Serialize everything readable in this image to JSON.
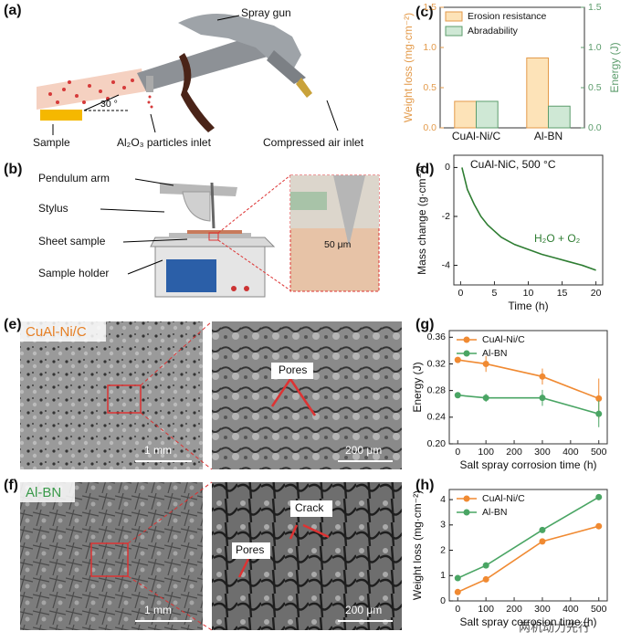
{
  "panel_labels": [
    "(a)",
    "(b)",
    "(c)",
    "(d)",
    "(e)",
    "(f)",
    "(g)",
    "(h)"
  ],
  "spray": {
    "gun": "Spray gun",
    "sample": "Sample",
    "particles": "Al₂O₃ particles inlet",
    "air": "Compressed air inlet",
    "angle": "30 °"
  },
  "pendulum": {
    "arm": "Pendulum arm",
    "stylus": "Stylus",
    "sheet": "Sheet sample",
    "holder": "Sample holder",
    "scale": "50 μm"
  },
  "sem_e": {
    "label": "CuAl-Ni/C",
    "scale_left": "1 mm",
    "pores": "Pores",
    "scale_right": "200 μm"
  },
  "sem_f": {
    "label": "Al-BN",
    "scale_left": "1 mm",
    "pores": "Pores",
    "crack": "Crack",
    "scale_right": "200 μm"
  },
  "watermark": "两机动力先行",
  "chart_data": [
    {
      "type": "bar",
      "categories": [
        "CuAl-Ni/C",
        "Al-BN"
      ],
      "series": [
        {
          "name": "Erosion resistance",
          "color": "#fde3b8",
          "edgecolor": "#e39a4a",
          "values": [
            0.33,
            0.87
          ]
        },
        {
          "name": "Abradability",
          "color": "#cfe8d5",
          "edgecolor": "#5c9c6c",
          "values": [
            0.33,
            0.27
          ],
          "axis": "y2"
        }
      ],
      "ylabel": "Weight loss (mg·cm⁻²)",
      "y2label": "Energy (J)",
      "ylim": [
        0,
        1.5
      ],
      "yticks": [
        {
          "value": 0,
          "label": "0.0"
        },
        0.5,
        {
          "value": 1,
          "label": "1.0"
        },
        1.5
      ],
      "y2lim": [
        0,
        1.5
      ],
      "y2ticks": [
        {
          "value": 0,
          "label": "0.0"
        },
        0.5,
        {
          "value": 1,
          "label": "1.0"
        },
        1.5
      ]
    },
    {
      "type": "line",
      "annotations": [
        "CuAl-NiC, 500 °C",
        "H₂O + O₂"
      ],
      "x": [
        0.2,
        1,
        2,
        3,
        4,
        5,
        6,
        7,
        8,
        10,
        12,
        14,
        16,
        18,
        20
      ],
      "series": [
        {
          "color": "#2e7d32",
          "values": [
            0,
            -0.9,
            -1.5,
            -2.0,
            -2.35,
            -2.6,
            -2.85,
            -3.0,
            -3.15,
            -3.35,
            -3.55,
            -3.7,
            -3.85,
            -4.0,
            -4.2
          ]
        }
      ],
      "xlabel": "Time (h)",
      "ylabel": "Mass change (g·cm⁻²)",
      "xlim": [
        -1,
        21
      ],
      "xticks": [
        0,
        5,
        10,
        15,
        20
      ],
      "ylim": [
        -4.8,
        0.5
      ],
      "yticks": [
        0,
        -2,
        -4
      ]
    },
    {
      "type": "line",
      "x": [
        0,
        100,
        300,
        500
      ],
      "series": [
        {
          "name": "CuAl-Ni/C",
          "color": "#f08a32",
          "values": [
            0.326,
            0.32,
            0.301,
            0.268
          ],
          "errors": [
            0.004,
            0.012,
            0.012,
            0.03
          ]
        },
        {
          "name": "Al-BN",
          "color": "#4aa564",
          "values": [
            0.273,
            0.269,
            0.269,
            0.245
          ],
          "errors": [
            0.003,
            0.006,
            0.012,
            0.02
          ]
        }
      ],
      "xlabel": "Salt spray corrosion time (h)",
      "ylabel": "Energy (J)",
      "xlim": [
        -30,
        530
      ],
      "xticks": [
        0,
        100,
        200,
        300,
        400,
        500
      ],
      "ylim": [
        0.2,
        0.37
      ],
      "yticks": [
        {
          "value": 0.2,
          "label": "0.20"
        },
        0.24,
        {
          "value": 0.28,
          "label": "0.28"
        },
        0.32,
        0.36
      ]
    },
    {
      "type": "line",
      "x": [
        0,
        100,
        300,
        500
      ],
      "series": [
        {
          "name": "CuAl-Ni/C",
          "color": "#f08a32",
          "values": [
            0.35,
            0.85,
            2.35,
            2.95
          ]
        },
        {
          "name": "Al-BN",
          "color": "#4aa564",
          "values": [
            0.9,
            1.4,
            2.8,
            4.1
          ]
        }
      ],
      "xlabel": "Salt spray corrosion time (h)",
      "ylabel": "Weight loss (mg·cm⁻²)",
      "xlim": [
        -30,
        530
      ],
      "xticks": [
        0,
        100,
        200,
        300,
        400,
        500
      ],
      "ylim": [
        0,
        4.4
      ],
      "yticks": [
        0,
        1,
        2,
        3,
        4
      ]
    }
  ]
}
